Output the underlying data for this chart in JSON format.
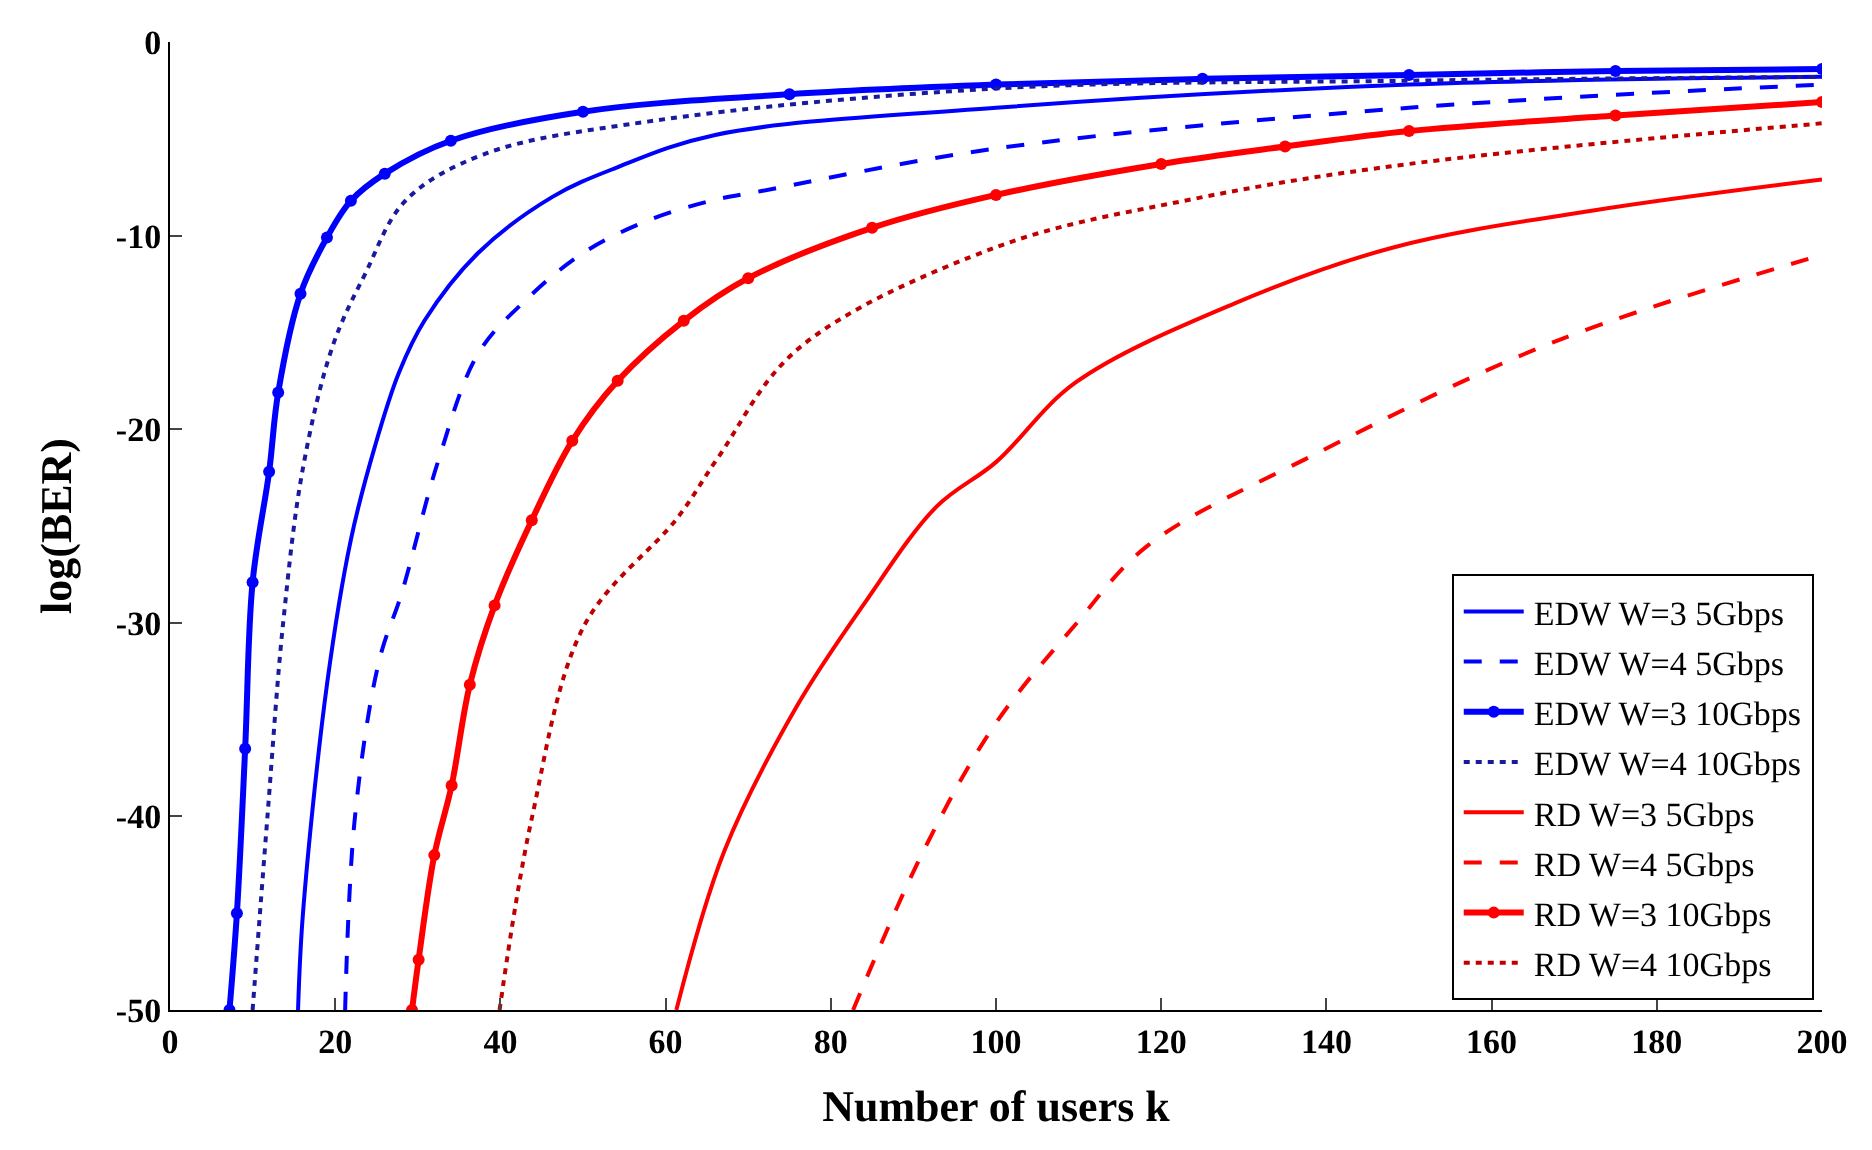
{
  "chart_data": {
    "type": "line",
    "xlabel": "Number of users k",
    "ylabel": "log(BER)",
    "xlim": [
      0,
      200
    ],
    "xticks": [
      0,
      20,
      40,
      60,
      80,
      100,
      120,
      140,
      160,
      180,
      200
    ],
    "ylim": [
      -50,
      0
    ],
    "yticks": [
      -50,
      -40,
      -30,
      -20,
      -10,
      0
    ],
    "legend": "bottom right",
    "series": [
      {
        "name": "EDW W=3 5Gbps",
        "color": "#0000ff",
        "line_style": "solid",
        "marker": "none",
        "x": [
          15.5,
          16.1,
          19.0,
          21.9,
          24.8,
          27.7,
          30.8,
          37.3,
          46.3,
          54,
          66,
          100,
          150,
          200
        ],
        "values": [
          -50,
          -45,
          -33.2,
          -25.7,
          -20.9,
          -17.1,
          -14.4,
          -10.9,
          -8.0,
          -6.5,
          -4.8,
          -3.4,
          -2.2,
          -1.8
        ]
      },
      {
        "name": "EDW W=4 5Gbps",
        "color": "#0000ff",
        "line_style": "dashed",
        "marker": "none",
        "x": [
          21.2,
          22.4,
          25.3,
          28.1,
          32.5,
          37.3,
          42.9,
          50,
          58,
          65.5,
          71.6,
          100,
          150,
          200
        ],
        "values": [
          -50,
          -40,
          -32,
          -28.4,
          -21.6,
          -16.1,
          -13.4,
          -10.9,
          -9.2,
          -8.2,
          -7.7,
          -5.5,
          -3.4,
          -2.2
        ]
      },
      {
        "name": "EDW W=3 10Gbps",
        "color": "#0000ff",
        "line_style": "solid",
        "marker": "circle",
        "x": [
          7.2,
          8.1,
          9.1,
          10.0,
          12.0,
          13.1,
          15.8,
          19.0,
          21.9,
          26,
          34,
          50,
          75,
          100,
          125,
          150,
          175,
          200
        ],
        "values": [
          -50,
          -45,
          -36.5,
          -27.9,
          -22.2,
          -18.1,
          -13.0,
          -10.1,
          -8.2,
          -6.8,
          -5.1,
          -3.6,
          -2.7,
          -2.2,
          -1.9,
          -1.7,
          -1.5,
          -1.4
        ]
      },
      {
        "name": "EDW W=4 10Gbps",
        "color": "#1a1aa0",
        "line_style": "dotted",
        "marker": "none",
        "x": [
          10.0,
          11.8,
          13.7,
          16.1,
          19.7,
          23.6,
          28.5,
          38,
          58,
          100,
          150,
          200
        ],
        "values": [
          -50,
          -40,
          -30,
          -22,
          -15.7,
          -12,
          -8.2,
          -5.8,
          -4.1,
          -2.4,
          -2.0,
          -1.8
        ]
      },
      {
        "name": "RD W=3 5Gbps",
        "color": "#ff0000",
        "line_style": "solid",
        "marker": "none",
        "x": [
          61.3,
          67.1,
          75.9,
          83.9,
          92.8,
          100,
          109.6,
          128.9,
          148.2,
          172.3,
          200
        ],
        "values": [
          -50,
          -41.8,
          -34.3,
          -29.1,
          -24.0,
          -21.7,
          -17.6,
          -13.5,
          -10.6,
          -8.7,
          -7.1
        ]
      },
      {
        "name": "RD W=4 5Gbps",
        "color": "#ff0000",
        "line_style": "dashed",
        "marker": "none",
        "x": [
          82.7,
          91.2,
          99.8,
          109.6,
          118.4,
          138.6,
          167.5,
          200
        ],
        "values": [
          -50,
          -41.8,
          -35.3,
          -30.1,
          -26.0,
          -21.3,
          -15.5,
          -11.0
        ]
      },
      {
        "name": "RD W=3 10Gbps",
        "color": "#ff0000",
        "line_style": "solid",
        "marker": "circle",
        "x": [
          29.3,
          30.1,
          32,
          34.1,
          36.3,
          39.3,
          43.8,
          48.7,
          54.2,
          62.2,
          70,
          85,
          100,
          120,
          135,
          150,
          175,
          200
        ],
        "values": [
          -50,
          -47.4,
          -42,
          -38.4,
          -33.2,
          -29.1,
          -24.7,
          -20.6,
          -17.5,
          -14.4,
          -12.2,
          -9.6,
          -7.9,
          -6.3,
          -5.4,
          -4.6,
          -3.8,
          -3.1
        ]
      },
      {
        "name": "RD W=4 10Gbps",
        "color": "#c00000",
        "line_style": "dotted",
        "marker": "none",
        "x": [
          39.9,
          43.8,
          50.2,
          61.4,
          66.3,
          75.9,
          100,
          124,
          150,
          200
        ],
        "values": [
          -50,
          -40.1,
          -30.1,
          -24.6,
          -21.5,
          -15.9,
          -10.6,
          -8.1,
          -6.3,
          -4.2
        ]
      }
    ]
  }
}
